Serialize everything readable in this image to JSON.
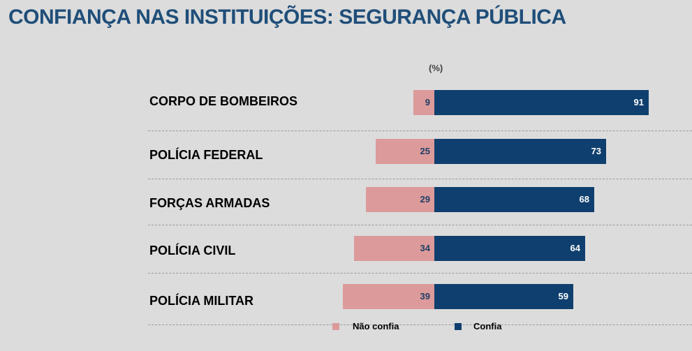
{
  "chart_data": {
    "type": "bar",
    "orientation": "horizontal-diverging",
    "title": "CONFIANÇA NAS INSTITUIÇÕES: SEGURANÇA PÚBLICA",
    "unit_label": "(%)",
    "categories": [
      "CORPO DE BOMBEIROS",
      "POLÍCIA FEDERAL",
      "FORÇAS ARMADAS",
      "POLÍCIA CIVIL",
      "POLÍCIA MILITAR"
    ],
    "series": [
      {
        "name": "Não confia",
        "color": "#dc9a9a",
        "values": [
          9,
          25,
          29,
          34,
          39
        ]
      },
      {
        "name": "Confia",
        "color": "#0f3f6e",
        "values": [
          91,
          73,
          68,
          64,
          59
        ]
      }
    ],
    "legend_position": "bottom",
    "grid": false
  }
}
